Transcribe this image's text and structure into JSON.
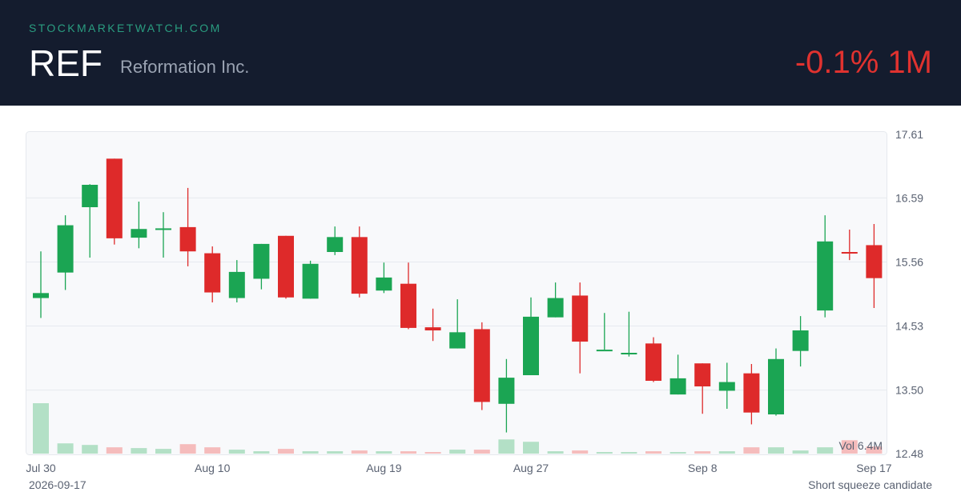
{
  "header": {
    "site": "STOCKMARKETWATCH.COM",
    "ticker": "REF",
    "company": "Reformation Inc.",
    "change": "-0.1% 1M"
  },
  "colors": {
    "up": "#1ba553",
    "down": "#de2a2a",
    "up_volume": "#b3e0c6",
    "down_volume": "#f5bcbc",
    "header_bg": "#141c2e"
  },
  "chart_data": {
    "type": "candlestick",
    "y_ticks": [
      "17.61",
      "16.59",
      "15.56",
      "14.53",
      "13.50",
      "12.48"
    ],
    "ylim": [
      12.48,
      17.61
    ],
    "x_tick_labels": [
      {
        "index": 0,
        "label": "Jul 30"
      },
      {
        "index": 7,
        "label": "Aug 10"
      },
      {
        "index": 14,
        "label": "Aug 19"
      },
      {
        "index": 20,
        "label": "Aug 27"
      },
      {
        "index": 27,
        "label": "Sep 8"
      },
      {
        "index": 34,
        "label": "Sep 17"
      }
    ],
    "volume_label": "Vol 6.4M",
    "volume_max": 6.4,
    "candles": [
      {
        "o": 14.98,
        "h": 15.73,
        "l": 14.66,
        "c": 15.06,
        "v": 6.4
      },
      {
        "o": 15.39,
        "h": 16.31,
        "l": 15.11,
        "c": 16.15,
        "v": 1.3
      },
      {
        "o": 16.44,
        "h": 16.81,
        "l": 15.63,
        "c": 16.8,
        "v": 1.1
      },
      {
        "o": 17.22,
        "h": 17.22,
        "l": 15.84,
        "c": 15.94,
        "v": 0.8
      },
      {
        "o": 15.95,
        "h": 16.53,
        "l": 15.78,
        "c": 16.09,
        "v": 0.7
      },
      {
        "o": 16.1,
        "h": 16.36,
        "l": 15.63,
        "c": 16.1,
        "v": 0.6
      },
      {
        "o": 16.12,
        "h": 16.75,
        "l": 15.49,
        "c": 15.73,
        "v": 1.2
      },
      {
        "o": 15.7,
        "h": 15.81,
        "l": 14.91,
        "c": 15.07,
        "v": 0.8
      },
      {
        "o": 14.98,
        "h": 15.59,
        "l": 14.91,
        "c": 15.4,
        "v": 0.5
      },
      {
        "o": 15.29,
        "h": 15.85,
        "l": 15.12,
        "c": 15.85,
        "v": 0.3
      },
      {
        "o": 15.98,
        "h": 15.98,
        "l": 14.97,
        "c": 14.99,
        "v": 0.6
      },
      {
        "o": 14.97,
        "h": 15.58,
        "l": 14.97,
        "c": 15.53,
        "v": 0.3
      },
      {
        "o": 15.72,
        "h": 16.13,
        "l": 15.67,
        "c": 15.96,
        "v": 0.3
      },
      {
        "o": 15.96,
        "h": 16.13,
        "l": 14.99,
        "c": 15.05,
        "v": 0.4
      },
      {
        "o": 15.1,
        "h": 15.55,
        "l": 15.06,
        "c": 15.31,
        "v": 0.3
      },
      {
        "o": 15.21,
        "h": 15.55,
        "l": 14.48,
        "c": 14.5,
        "v": 0.3
      },
      {
        "o": 14.51,
        "h": 14.81,
        "l": 14.29,
        "c": 14.46,
        "v": 0.2
      },
      {
        "o": 14.17,
        "h": 14.96,
        "l": 14.17,
        "c": 14.43,
        "v": 0.5
      },
      {
        "o": 14.48,
        "h": 14.59,
        "l": 13.18,
        "c": 13.31,
        "v": 0.5
      },
      {
        "o": 13.28,
        "h": 14.0,
        "l": 12.82,
        "c": 13.7,
        "v": 1.8
      },
      {
        "o": 13.74,
        "h": 14.99,
        "l": 13.74,
        "c": 14.68,
        "v": 1.5
      },
      {
        "o": 14.67,
        "h": 15.23,
        "l": 14.67,
        "c": 14.98,
        "v": 0.3
      },
      {
        "o": 15.02,
        "h": 15.23,
        "l": 13.77,
        "c": 14.28,
        "v": 0.4
      },
      {
        "o": 14.15,
        "h": 14.74,
        "l": 14.15,
        "c": 14.15,
        "v": 0.2
      },
      {
        "o": 14.1,
        "h": 14.76,
        "l": 14.04,
        "c": 14.1,
        "v": 0.2
      },
      {
        "o": 14.25,
        "h": 14.35,
        "l": 13.63,
        "c": 13.65,
        "v": 0.3
      },
      {
        "o": 13.43,
        "h": 14.07,
        "l": 13.43,
        "c": 13.69,
        "v": 0.2
      },
      {
        "o": 13.93,
        "h": 13.93,
        "l": 13.12,
        "c": 13.56,
        "v": 0.3
      },
      {
        "o": 13.49,
        "h": 13.94,
        "l": 13.2,
        "c": 13.63,
        "v": 0.3
      },
      {
        "o": 13.77,
        "h": 13.92,
        "l": 12.95,
        "c": 13.14,
        "v": 0.8
      },
      {
        "o": 13.11,
        "h": 14.17,
        "l": 13.09,
        "c": 14.0,
        "v": 0.8
      },
      {
        "o": 14.13,
        "h": 14.69,
        "l": 13.88,
        "c": 14.46,
        "v": 0.4
      },
      {
        "o": 14.78,
        "h": 16.31,
        "l": 14.67,
        "c": 15.89,
        "v": 0.8
      },
      {
        "o": 15.72,
        "h": 16.08,
        "l": 15.59,
        "c": 15.71,
        "v": 1.7
      },
      {
        "o": 15.83,
        "h": 16.17,
        "l": 14.82,
        "c": 15.3,
        "v": 0.9
      }
    ]
  },
  "footer": {
    "date": "2026-09-17",
    "note": "Short squeeze candidate"
  }
}
